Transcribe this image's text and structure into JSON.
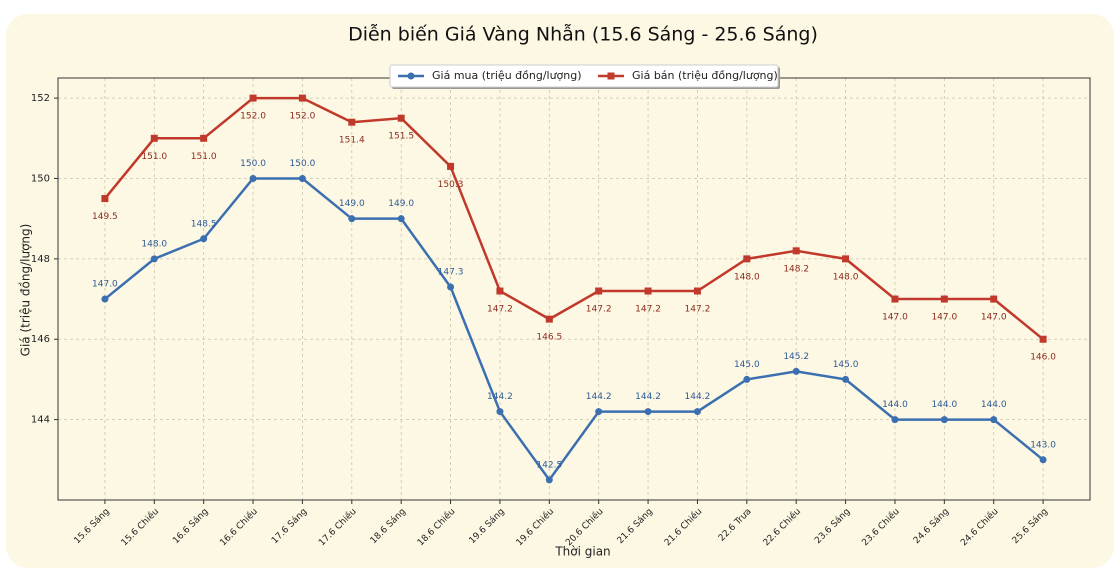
{
  "chart_data": {
    "type": "line",
    "title": "Diễn biến Giá Vàng Nhẫn (15.6 Sáng - 25.6 Sáng)",
    "x_label": "Thời gian",
    "y_label": "Giá (triệu đồng/lượng)",
    "categories": [
      "15.6 Sáng",
      "15.6 Chiều",
      "16.6 Sáng",
      "16.6 Chiều",
      "17.6 Sáng",
      "17.6 Chiều",
      "18.6 Sáng",
      "18.6 Chiều",
      "19.6 Sáng",
      "19.6 Chiều",
      "20.6 Chiều",
      "21.6 Sáng",
      "21.6 Chiều",
      "22.6 Trưa",
      "22.6 Chiều",
      "23.6 Sáng",
      "23.6 Chiều",
      "24.6 Sáng",
      "24.6 Chiều",
      "25.6 Sáng"
    ],
    "series": [
      {
        "name": "Giá mua (triệu đồng/lượng)",
        "color": "#3b6fb0",
        "marker": "circle",
        "values": [
          147.0,
          148.0,
          148.5,
          150.0,
          150.0,
          149.0,
          149.0,
          147.3,
          144.2,
          142.5,
          144.2,
          144.2,
          144.2,
          145.0,
          145.2,
          145.0,
          144.0,
          144.0,
          144.0,
          143.0
        ],
        "value_labels": [
          "147.0",
          "148.0",
          "148.5",
          "150.0",
          "150.0",
          "149.0",
          "149.0",
          "147.3",
          "144.2",
          "142.5",
          "144.2",
          "144.2",
          "144.2",
          "145.0",
          "145.2",
          "145.0",
          "144.0",
          "144.0",
          "144.0",
          "143.0"
        ]
      },
      {
        "name": "Giá bán (triệu đồng/lượng)",
        "color": "#c0392b",
        "marker": "square",
        "values": [
          149.5,
          151.0,
          151.0,
          152.0,
          152.0,
          151.4,
          151.5,
          150.3,
          147.2,
          146.5,
          147.2,
          147.2,
          147.2,
          148.0,
          148.2,
          148.0,
          147.0,
          147.0,
          147.0,
          146.0
        ],
        "value_labels": [
          "149.5",
          "151.0",
          "151.0",
          "152.0",
          "152.0",
          "151.4",
          "151.5",
          "150.3",
          "147.2",
          "146.5",
          "147.2",
          "147.2",
          "147.2",
          "148.0",
          "148.2",
          "148.0",
          "147.0",
          "147.0",
          "147.0",
          "146.0"
        ]
      }
    ],
    "ylim": [
      142,
      152.5
    ],
    "yticks": [
      144,
      146,
      148,
      150,
      152
    ],
    "grid": true,
    "legend": "upper center"
  }
}
